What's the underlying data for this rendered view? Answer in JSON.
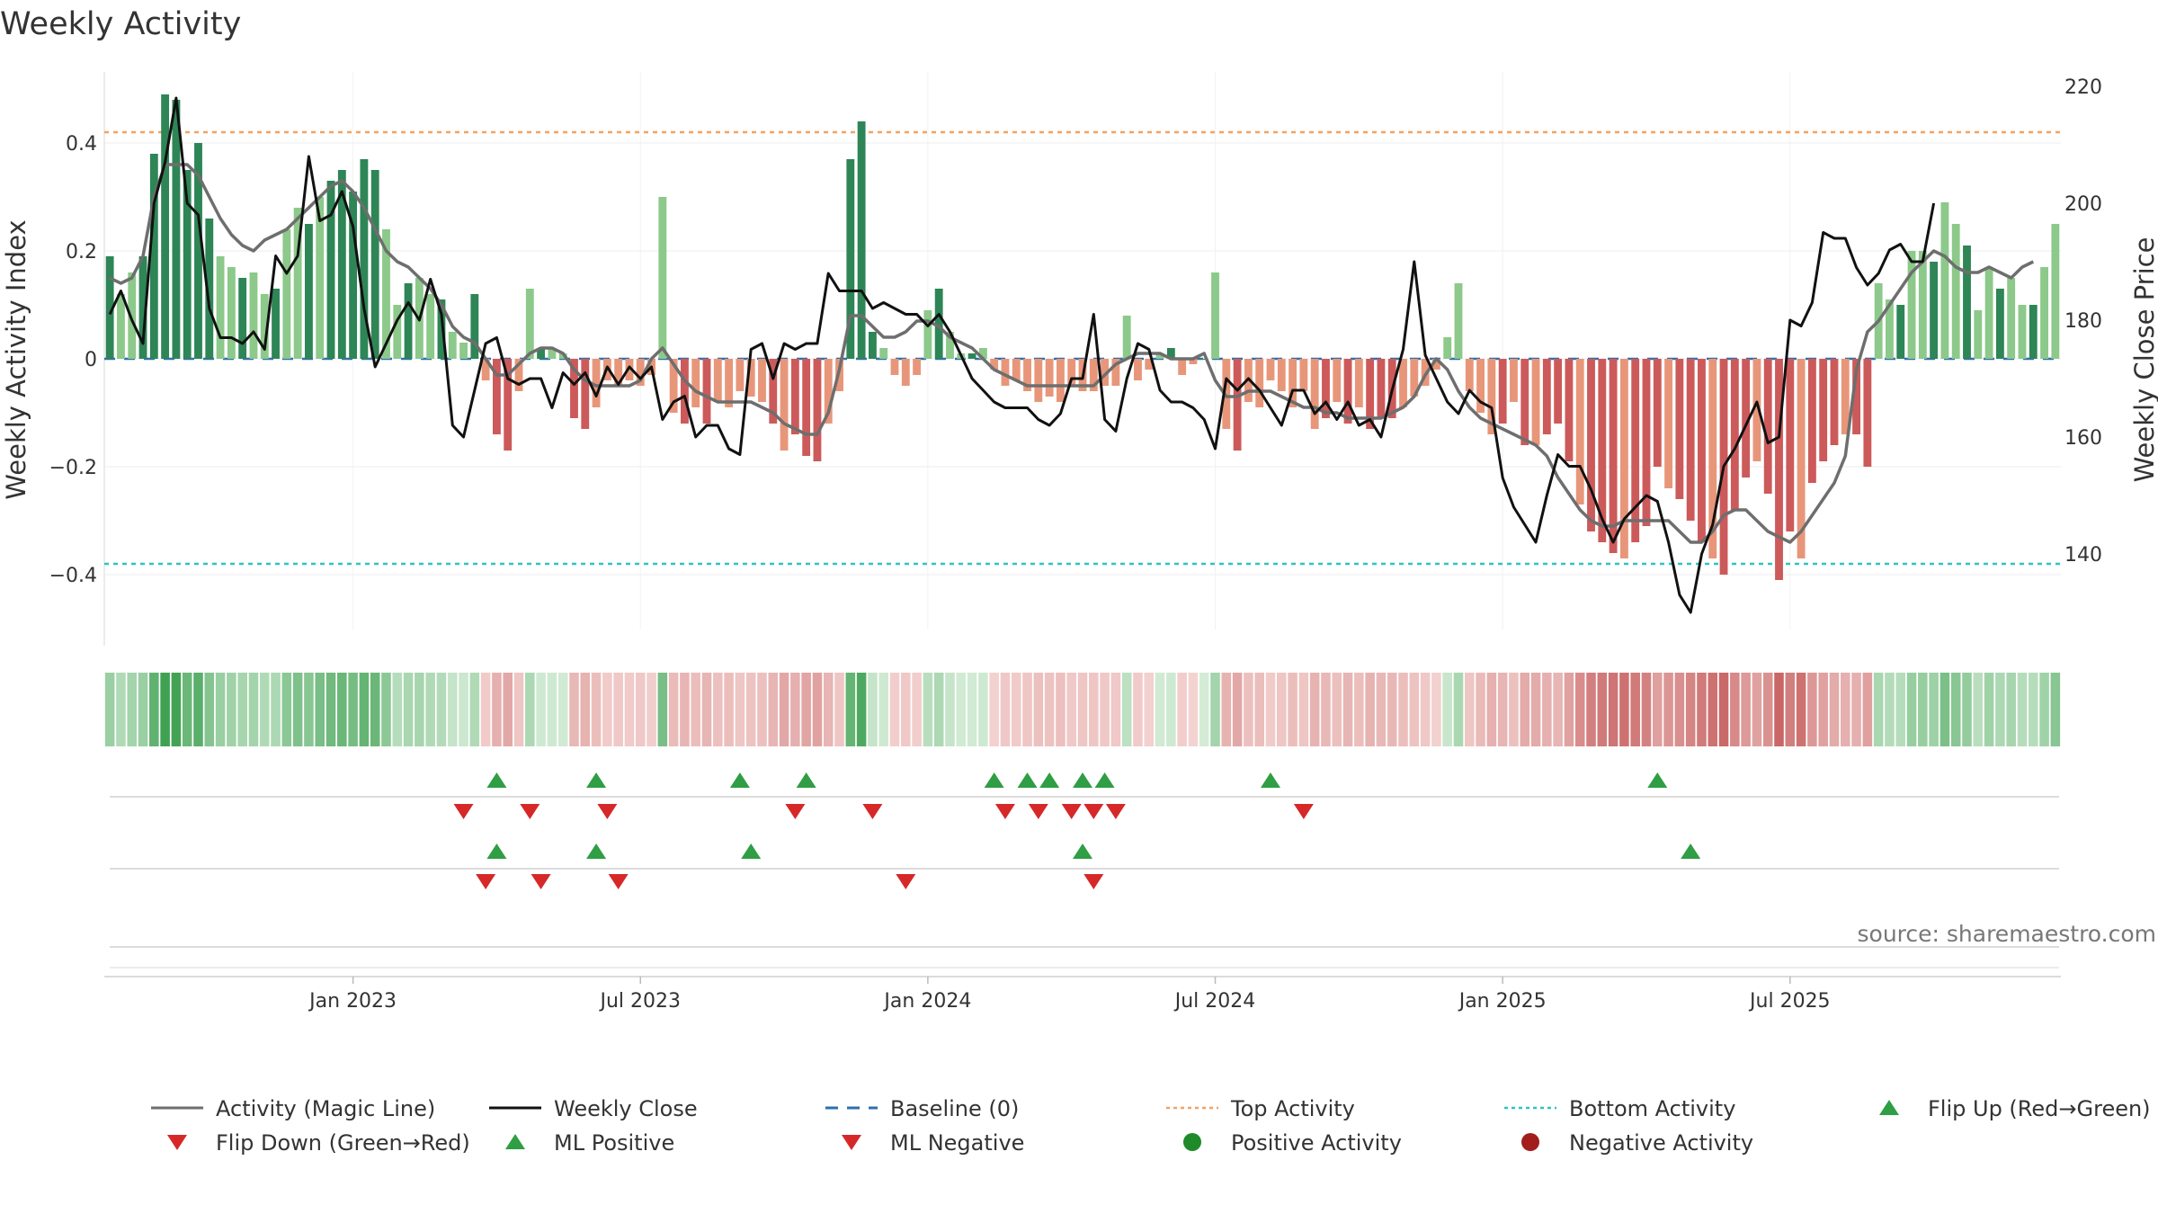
{
  "chart_data": {
    "type": "bar",
    "title": "Weekly Activity",
    "ylabel": "Weekly Activity Index",
    "y2label": "Weekly Close Price",
    "ylim": [
      -0.54,
      0.54
    ],
    "y2lim": [
      124,
      222
    ],
    "yticks": [
      {
        "v": 0.4,
        "t": "0.4"
      },
      {
        "v": 0.2,
        "t": "0.2"
      },
      {
        "v": 0,
        "t": "0"
      },
      {
        "v": -0.2,
        "t": "−0.2"
      },
      {
        "v": -0.4,
        "t": "−0.4"
      }
    ],
    "y2ticks": [
      {
        "v": 220,
        "t": "220"
      },
      {
        "v": 200,
        "t": "200"
      },
      {
        "v": 180,
        "t": "180"
      },
      {
        "v": 160,
        "t": "160"
      },
      {
        "v": 140,
        "t": "140"
      }
    ],
    "xticks": [
      {
        "w": 22,
        "t": "Jan 2023"
      },
      {
        "w": 48,
        "t": "Jul 2023"
      },
      {
        "w": 74,
        "t": "Jan 2024"
      },
      {
        "w": 100,
        "t": "Jul 2024"
      },
      {
        "w": 126,
        "t": "Jan 2025"
      },
      {
        "w": 152,
        "t": "Jul 2025"
      }
    ],
    "top_activity": 0.42,
    "bottom_activity": -0.38,
    "weekly_activity": [
      0.19,
      0.12,
      0.16,
      0.19,
      0.38,
      0.49,
      0.48,
      0.35,
      0.4,
      0.26,
      0.19,
      0.17,
      0.15,
      0.16,
      0.12,
      0.13,
      0.24,
      0.28,
      0.25,
      0.3,
      0.33,
      0.35,
      0.31,
      0.37,
      0.35,
      0.24,
      0.1,
      0.14,
      0.15,
      0.12,
      0.11,
      0.05,
      0.03,
      0.12,
      -0.04,
      -0.14,
      -0.17,
      -0.06,
      0.13,
      0.02,
      0.02,
      0.01,
      -0.11,
      -0.13,
      -0.09,
      -0.04,
      -0.05,
      -0.04,
      -0.05,
      -0.03,
      0.3,
      -0.1,
      -0.12,
      -0.09,
      -0.12,
      -0.08,
      -0.09,
      -0.06,
      -0.07,
      -0.08,
      -0.12,
      -0.17,
      -0.14,
      -0.18,
      -0.19,
      -0.12,
      -0.06,
      0.37,
      0.44,
      0.05,
      0.02,
      -0.03,
      -0.05,
      -0.03,
      0.09,
      0.13,
      0.05,
      0.01,
      0.01,
      0.02,
      -0.02,
      -0.05,
      -0.04,
      -0.06,
      -0.08,
      -0.07,
      -0.08,
      -0.05,
      -0.06,
      -0.06,
      -0.05,
      -0.05,
      0.08,
      -0.04,
      -0.02,
      0.01,
      0.02,
      -0.03,
      -0.01,
      0.0,
      0.16,
      -0.13,
      -0.17,
      -0.08,
      -0.09,
      -0.04,
      -0.06,
      -0.09,
      -0.06,
      -0.13,
      -0.11,
      -0.08,
      -0.12,
      -0.09,
      -0.13,
      -0.11,
      -0.11,
      -0.09,
      -0.07,
      -0.05,
      -0.02,
      0.04,
      0.14,
      -0.06,
      -0.1,
      -0.14,
      -0.12,
      -0.08,
      -0.16,
      -0.16,
      -0.14,
      -0.12,
      -0.19,
      -0.27,
      -0.32,
      -0.34,
      -0.36,
      -0.37,
      -0.34,
      -0.31,
      -0.2,
      -0.24,
      -0.26,
      -0.3,
      -0.34,
      -0.37,
      -0.4,
      -0.28,
      -0.22,
      -0.19,
      -0.25,
      -0.41,
      -0.32,
      -0.37,
      -0.23,
      -0.19,
      -0.16,
      -0.14,
      -0.14,
      -0.2,
      0.14,
      0.11,
      0.1,
      0.2,
      0.2,
      0.18,
      0.29,
      0.25,
      0.21,
      0.09,
      0.17,
      0.13,
      0.15,
      0.1,
      0.1,
      0.17,
      0.25
    ],
    "magic_line": [
      0.15,
      0.14,
      0.15,
      0.19,
      0.3,
      0.36,
      0.36,
      0.36,
      0.34,
      0.3,
      0.26,
      0.23,
      0.21,
      0.2,
      0.22,
      0.23,
      0.24,
      0.26,
      0.28,
      0.3,
      0.32,
      0.33,
      0.31,
      0.28,
      0.24,
      0.2,
      0.18,
      0.17,
      0.15,
      0.13,
      0.1,
      0.06,
      0.04,
      0.03,
      0.0,
      -0.03,
      -0.03,
      -0.01,
      0.01,
      0.02,
      0.02,
      0.01,
      -0.02,
      -0.04,
      -0.05,
      -0.05,
      -0.05,
      -0.05,
      -0.04,
      0.0,
      0.02,
      -0.01,
      -0.04,
      -0.06,
      -0.07,
      -0.08,
      -0.08,
      -0.08,
      -0.08,
      -0.09,
      -0.1,
      -0.12,
      -0.13,
      -0.14,
      -0.14,
      -0.1,
      -0.02,
      0.08,
      0.08,
      0.06,
      0.04,
      0.04,
      0.05,
      0.07,
      0.07,
      0.06,
      0.04,
      0.03,
      0.02,
      0.0,
      -0.02,
      -0.03,
      -0.04,
      -0.05,
      -0.05,
      -0.05,
      -0.05,
      -0.05,
      -0.05,
      -0.05,
      -0.03,
      -0.01,
      0.0,
      0.01,
      0.01,
      0.01,
      0.0,
      0.0,
      0.0,
      0.01,
      -0.04,
      -0.07,
      -0.07,
      -0.06,
      -0.06,
      -0.06,
      -0.07,
      -0.08,
      -0.09,
      -0.09,
      -0.1,
      -0.1,
      -0.11,
      -0.11,
      -0.11,
      -0.11,
      -0.1,
      -0.09,
      -0.07,
      -0.03,
      0.0,
      -0.02,
      -0.06,
      -0.09,
      -0.11,
      -0.12,
      -0.13,
      -0.14,
      -0.15,
      -0.16,
      -0.18,
      -0.22,
      -0.25,
      -0.28,
      -0.3,
      -0.31,
      -0.31,
      -0.3,
      -0.3,
      -0.3,
      -0.3,
      -0.3,
      -0.32,
      -0.34,
      -0.34,
      -0.32,
      -0.29,
      -0.28,
      -0.28,
      -0.3,
      -0.32,
      -0.33,
      -0.34,
      -0.32,
      -0.29,
      -0.26,
      -0.23,
      -0.18,
      -0.02,
      0.05,
      0.07,
      0.1,
      0.13,
      0.16,
      0.18,
      0.2,
      0.19,
      0.17,
      0.16,
      0.16,
      0.17,
      0.16,
      0.15,
      0.17,
      0.18
    ],
    "weekly_close": [
      181,
      185,
      180,
      176,
      200,
      207,
      218,
      200,
      198,
      182,
      177,
      177,
      176,
      178,
      175,
      191,
      188,
      191,
      208,
      197,
      198,
      202,
      196,
      182,
      172,
      176,
      180,
      183,
      180,
      187,
      181,
      162,
      160,
      168,
      176,
      177,
      170,
      169,
      170,
      170,
      165,
      171,
      169,
      171,
      167,
      172,
      169,
      172,
      170,
      172,
      163,
      166,
      167,
      160,
      162,
      162,
      158,
      157,
      175,
      176,
      170,
      176,
      175,
      176,
      176,
      188,
      185,
      185,
      185,
      182,
      183,
      182,
      181,
      181,
      179,
      181,
      178,
      174,
      170,
      168,
      166,
      165,
      165,
      165,
      163,
      162,
      164,
      170,
      170,
      181,
      163,
      161,
      170,
      176,
      175,
      168,
      166,
      166,
      165,
      163,
      158,
      170,
      168,
      170,
      168,
      165,
      162,
      168,
      168,
      164,
      166,
      163,
      166,
      162,
      163,
      160,
      168,
      175,
      190,
      174,
      170,
      166,
      164,
      168,
      166,
      165,
      153,
      148,
      145,
      142,
      150,
      157,
      155,
      155,
      151,
      146,
      142,
      146,
      148,
      150,
      149,
      142,
      133,
      130,
      140,
      145,
      155,
      158,
      162,
      166,
      159,
      160,
      180,
      179,
      183,
      195,
      194,
      194,
      189,
      186,
      188,
      192,
      193,
      190,
      190,
      200
    ],
    "heat_strip": [
      0.19,
      0.12,
      0.16,
      0.19,
      0.38,
      0.49,
      0.48,
      0.35,
      0.4,
      0.26,
      0.19,
      0.17,
      0.15,
      0.16,
      0.12,
      0.13,
      0.24,
      0.28,
      0.25,
      0.3,
      0.33,
      0.35,
      0.31,
      0.37,
      0.35,
      0.24,
      0.1,
      0.14,
      0.15,
      0.12,
      0.11,
      0.05,
      0.03,
      0.12,
      -0.04,
      -0.14,
      -0.17,
      -0.06,
      0.13,
      0.02,
      0.02,
      0.01,
      -0.11,
      -0.13,
      -0.09,
      -0.04,
      -0.05,
      -0.04,
      -0.05,
      -0.03,
      0.3,
      -0.1,
      -0.12,
      -0.09,
      -0.12,
      -0.08,
      -0.09,
      -0.06,
      -0.07,
      -0.08,
      -0.12,
      -0.17,
      -0.14,
      -0.18,
      -0.19,
      -0.12,
      -0.06,
      0.37,
      0.44,
      0.05,
      0.02,
      -0.03,
      -0.05,
      -0.03,
      0.09,
      0.13,
      0.05,
      0.01,
      0.01,
      0.02,
      -0.02,
      -0.05,
      -0.04,
      -0.06,
      -0.08,
      -0.07,
      -0.08,
      -0.05,
      -0.06,
      -0.06,
      -0.05,
      -0.05,
      0.08,
      -0.04,
      -0.02,
      0.01,
      0.02,
      -0.03,
      -0.01,
      0.0,
      0.16,
      -0.13,
      -0.17,
      -0.08,
      -0.09,
      -0.04,
      -0.06,
      -0.09,
      -0.06,
      -0.13,
      -0.11,
      -0.08,
      -0.12,
      -0.09,
      -0.13,
      -0.11,
      -0.11,
      -0.09,
      -0.07,
      -0.05,
      -0.02,
      0.04,
      0.14,
      -0.06,
      -0.1,
      -0.14,
      -0.12,
      -0.08,
      -0.16,
      -0.16,
      -0.14,
      -0.12,
      -0.19,
      -0.27,
      -0.32,
      -0.34,
      -0.36,
      -0.37,
      -0.34,
      -0.31,
      -0.2,
      -0.24,
      -0.26,
      -0.3,
      -0.34,
      -0.37,
      -0.4,
      -0.28,
      -0.22,
      -0.19,
      -0.25,
      -0.41,
      -0.32,
      -0.37,
      -0.23,
      -0.19,
      -0.16,
      -0.14,
      -0.14,
      -0.2,
      0.14,
      0.11,
      0.1,
      0.2,
      0.2,
      0.18,
      0.29,
      0.25,
      0.21,
      0.09,
      0.17,
      0.13,
      0.15,
      0.1,
      0.1,
      0.17,
      0.25
    ],
    "flip_up_weeks": [
      35,
      44,
      57,
      63,
      80,
      83,
      85,
      88,
      90,
      105,
      140
    ],
    "flip_down_weeks": [
      32,
      38,
      45,
      62,
      69,
      81,
      84,
      87,
      89,
      91,
      108
    ],
    "ml_positive_weeks": [
      35,
      44,
      58,
      88,
      143
    ],
    "ml_negative_weeks": [
      34,
      39,
      46,
      72,
      89
    ],
    "colors": {
      "pos_dark": "#2e8556",
      "pos_light": "#8cc98a",
      "neg_dark": "#cc5a5a",
      "neg_light": "#e8967a",
      "magic": "#6e6e6e",
      "close": "#111111",
      "baseline": "#2f6fad",
      "top": "#f4a261",
      "bottom": "#2ec4c4",
      "flip_up": "#2f9e44",
      "flip_down": "#d62828",
      "pos_dot": "#1e8a2a",
      "neg_dot": "#a31d1d"
    },
    "legend": [
      {
        "label": "Activity (Magic Line)",
        "kind": "line-magic"
      },
      {
        "label": "Weekly Close",
        "kind": "line-close"
      },
      {
        "label": "Baseline (0)",
        "kind": "line-baseline"
      },
      {
        "label": "Top Activity",
        "kind": "line-top"
      },
      {
        "label": "Bottom Activity",
        "kind": "line-bottom"
      },
      {
        "label": "Flip Up (Red→Green)",
        "kind": "tri-up"
      },
      {
        "label": "Flip Down (Green→Red)",
        "kind": "tri-down"
      },
      {
        "label": "ML Positive",
        "kind": "tri-up"
      },
      {
        "label": "ML Negative",
        "kind": "tri-down"
      },
      {
        "label": "Positive Activity",
        "kind": "dot-pos"
      },
      {
        "label": "Negative Activity",
        "kind": "dot-neg"
      }
    ],
    "source": "source: sharemaestro.com"
  }
}
